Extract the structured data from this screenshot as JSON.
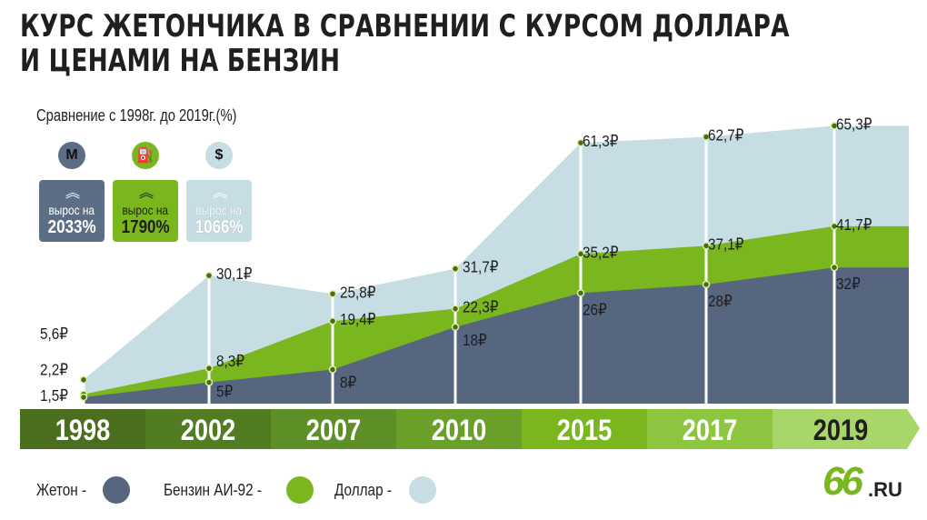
{
  "title_line1": "КУРС ЖЕТОНЧИКА В СРАВНЕНИИ С КУРСОМ ДОЛЛАРА",
  "title_line2": "И ЦЕНАМИ НА БЕНЗИН",
  "subtitle": "Сравнение с 1998г. до 2019г.(%)",
  "badges": [
    {
      "icon": "M",
      "icon_name": "metro-icon",
      "line1": "вырос на",
      "line2": "2033%",
      "bg": "#5b6e86",
      "text": "#ffffff",
      "circle_text": "#1f1f1f"
    },
    {
      "icon": "⛽",
      "icon_name": "fuel-icon",
      "line1": "вырос на",
      "line2": "1790%",
      "bg": "#7ab61e",
      "text": "#1f1f1f",
      "circle_text": "#1f1f1f"
    },
    {
      "icon": "$",
      "icon_name": "dollar-icon",
      "line1": "вырос на",
      "line2": "1066%",
      "bg": "#c5dde3",
      "text": "#ffffff",
      "circle_text": "#1f1f1f"
    }
  ],
  "legend": [
    {
      "label": "Жетон -",
      "color": "#56667f"
    },
    {
      "label": "Бензин АИ-92 -",
      "color": "#7ab61e"
    },
    {
      "label": "Доллар -",
      "color": "#c5dde3"
    }
  ],
  "logo_main": "66",
  "logo_suffix": ".RU",
  "chart_data": {
    "type": "area",
    "x": [
      "1998",
      "2002",
      "2007",
      "2010",
      "2015",
      "2017",
      "2019"
    ],
    "ylim": [
      0,
      70
    ],
    "series": [
      {
        "name": "Доллар",
        "color": "#c5dde3",
        "values": [
          5.6,
          30.1,
          25.8,
          31.7,
          61.3,
          62.7,
          65.3
        ],
        "labels": [
          "5,6₽",
          "30,1₽",
          "25,8₽",
          "31,7₽",
          "61,3₽",
          "62,7₽",
          "65,3₽"
        ]
      },
      {
        "name": "Бензин АИ-92",
        "color": "#7ab61e",
        "values": [
          2.2,
          8.3,
          19.4,
          22.3,
          35.2,
          37.1,
          41.7
        ],
        "labels": [
          "2,2₽",
          "8,3₽",
          "19,4₽",
          "22,3₽",
          "35,2₽",
          "37,1₽",
          "41,7₽"
        ]
      },
      {
        "name": "Жетон",
        "color": "#56667f",
        "values": [
          1.5,
          5,
          8,
          18,
          26,
          28,
          32
        ],
        "labels": [
          "1,5₽",
          "5₽",
          "8₽",
          "18₽",
          "26₽",
          "28₽",
          "32₽"
        ]
      }
    ],
    "timeline_colors": [
      "#4a6e1e",
      "#527c22",
      "#5e8e26",
      "#6aa02a",
      "#7ab61e",
      "#8cc63f",
      "#a8d66a"
    ]
  }
}
